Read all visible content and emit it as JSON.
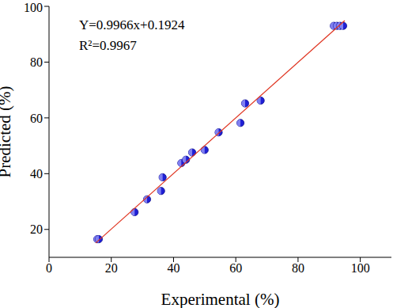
{
  "chart_data": {
    "type": "scatter",
    "x_label": "Experimental (%)",
    "y_label": "Predicted (%)",
    "annotations": [
      "Y=0.9966x+0.1924",
      "R²=0.9967"
    ],
    "series": [
      {
        "type": "scatter",
        "color": "#1f1fd6",
        "marker": "circle",
        "x": [
          15.5,
          16,
          27.5,
          31.5,
          36,
          36.5,
          42.5,
          44,
          46,
          50,
          54.5,
          61.5,
          63,
          68,
          91.5,
          92.5,
          93.5,
          94.5
        ],
        "values": [
          16.5,
          16.5,
          26.2,
          30.8,
          33.8,
          38.7,
          43.8,
          45,
          47.6,
          48.5,
          54.8,
          58.2,
          65.2,
          66.2,
          93,
          93,
          93,
          93
        ]
      },
      {
        "type": "line",
        "color": "#e0331f",
        "line_style": "solid",
        "x": [
          15,
          95
        ],
        "values": [
          15.14,
          94.87
        ]
      }
    ],
    "xlim": [
      0,
      110
    ],
    "ylim": [
      10,
      100
    ],
    "xticks": [
      0,
      20,
      40,
      60,
      80,
      100
    ],
    "yticks": [
      20,
      40,
      60,
      80,
      100
    ],
    "grid": false
  }
}
